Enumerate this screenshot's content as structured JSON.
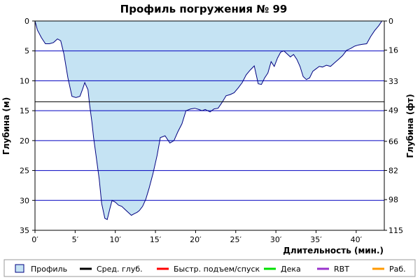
{
  "chart_data": {
    "type": "area",
    "title": "Профиль погружения № 99",
    "xlabel": "Длительность (мин.)",
    "ylabel": "Глубина (м)",
    "ylabel_right": "Глубина (фт)",
    "xlim": [
      0,
      43.5
    ],
    "ylim": [
      0,
      35
    ],
    "y_inverted": true,
    "x_ticks": [
      {
        "value": 0,
        "label": "0′"
      },
      {
        "value": 5,
        "label": "5′"
      },
      {
        "value": 10,
        "label": "10′"
      },
      {
        "value": 15,
        "label": "15′"
      },
      {
        "value": 20,
        "label": "20′"
      },
      {
        "value": 25,
        "label": "25′"
      },
      {
        "value": 30,
        "label": "30′"
      },
      {
        "value": 35,
        "label": "35′"
      },
      {
        "value": 40,
        "label": "40′"
      }
    ],
    "y_ticks": [
      {
        "value": 0,
        "label": "0"
      },
      {
        "value": 5,
        "label": "5"
      },
      {
        "value": 10,
        "label": "10"
      },
      {
        "value": 15,
        "label": "15"
      },
      {
        "value": 20,
        "label": "20"
      },
      {
        "value": 25,
        "label": "25"
      },
      {
        "value": 30,
        "label": "30"
      },
      {
        "value": 35,
        "label": "35"
      }
    ],
    "y_ticks_right": [
      {
        "value": 0,
        "label": "0"
      },
      {
        "value": 4.88,
        "label": "16"
      },
      {
        "value": 10.06,
        "label": "33"
      },
      {
        "value": 14.94,
        "label": "49"
      },
      {
        "value": 20.12,
        "label": "66"
      },
      {
        "value": 24.99,
        "label": "82"
      },
      {
        "value": 29.87,
        "label": "98"
      },
      {
        "value": 35.05,
        "label": "115"
      }
    ],
    "grid": true,
    "average_depth": 13.5,
    "legend_position": "bottom",
    "legend": [
      {
        "name": "Профиль",
        "kind": "box",
        "color": "#c5e3f3"
      },
      {
        "name": "Сред. глуб.",
        "kind": "line",
        "color": "#000000"
      },
      {
        "name": "Быстр. подъем/спуск",
        "kind": "line",
        "color": "#ff0000"
      },
      {
        "name": "Дека",
        "kind": "line",
        "color": "#00e000"
      },
      {
        "name": "RBT",
        "kind": "line",
        "color": "#9933cc"
      },
      {
        "name": "Раб.",
        "kind": "line",
        "color": "#ff9900"
      }
    ],
    "colors": {
      "fill": "#c5e3f3",
      "profile_line": "#000080",
      "grid": "#0000c0",
      "avg_line": "#000000"
    },
    "series": [
      {
        "name": "Профиль",
        "x": [
          0,
          0.3,
          0.8,
          1.3,
          1.8,
          2.3,
          2.8,
          3.2,
          3.6,
          4.1,
          4.6,
          5.1,
          5.6,
          5.9,
          6.2,
          6.6,
          6.8,
          7.1,
          7.3,
          7.6,
          8.0,
          8.3,
          8.7,
          9.0,
          9.3,
          9.6,
          10.0,
          10.4,
          10.8,
          11.2,
          11.6,
          12.0,
          12.4,
          12.7,
          13.0,
          13.4,
          13.8,
          14.2,
          14.7,
          15.2,
          15.6,
          16.2,
          16.8,
          17.3,
          17.8,
          18.3,
          18.8,
          19.4,
          19.9,
          20.4,
          20.8,
          21.2,
          21.8,
          22.3,
          22.8,
          23.3,
          23.8,
          24.3,
          24.8,
          25.3,
          25.8,
          26.3,
          26.8,
          27.3,
          27.8,
          28.2,
          28.6,
          29.0,
          29.4,
          29.8,
          30.2,
          30.6,
          31.0,
          31.4,
          31.8,
          32.2,
          32.6,
          33.0,
          33.4,
          33.8,
          34.2,
          34.6,
          35.0,
          35.4,
          35.8,
          36.3,
          36.8,
          37.3,
          37.8,
          38.3,
          38.8,
          39.3,
          39.8,
          40.3,
          40.8,
          41.3,
          41.8,
          42.3,
          42.8,
          43.2
        ],
        "y": [
          0,
          1.5,
          2.8,
          3.8,
          3.8,
          3.6,
          3.0,
          3.3,
          5.5,
          9.5,
          12.6,
          12.8,
          12.6,
          11.5,
          10.3,
          11.5,
          14.0,
          17.0,
          19.5,
          22.5,
          26.5,
          30.5,
          33.0,
          33.2,
          31.5,
          30.0,
          30.3,
          30.8,
          31.0,
          31.5,
          32.0,
          32.5,
          32.2,
          32.0,
          31.7,
          31.0,
          29.8,
          28.0,
          25.5,
          22.5,
          19.5,
          19.2,
          20.4,
          20.0,
          18.5,
          17.2,
          15.0,
          14.7,
          14.6,
          14.8,
          15.0,
          14.8,
          15.2,
          14.7,
          14.6,
          13.6,
          12.5,
          12.3,
          12.0,
          11.2,
          10.3,
          9.0,
          8.2,
          7.5,
          10.5,
          10.6,
          9.5,
          8.7,
          6.8,
          7.6,
          6.2,
          5.2,
          5.0,
          5.5,
          6.0,
          5.6,
          6.4,
          7.6,
          9.3,
          9.8,
          9.5,
          8.4,
          8.0,
          7.6,
          7.7,
          7.4,
          7.6,
          7.0,
          6.4,
          5.8,
          4.9,
          4.6,
          4.2,
          4.0,
          3.9,
          3.8,
          2.6,
          1.6,
          0.8,
          0
        ]
      }
    ]
  }
}
